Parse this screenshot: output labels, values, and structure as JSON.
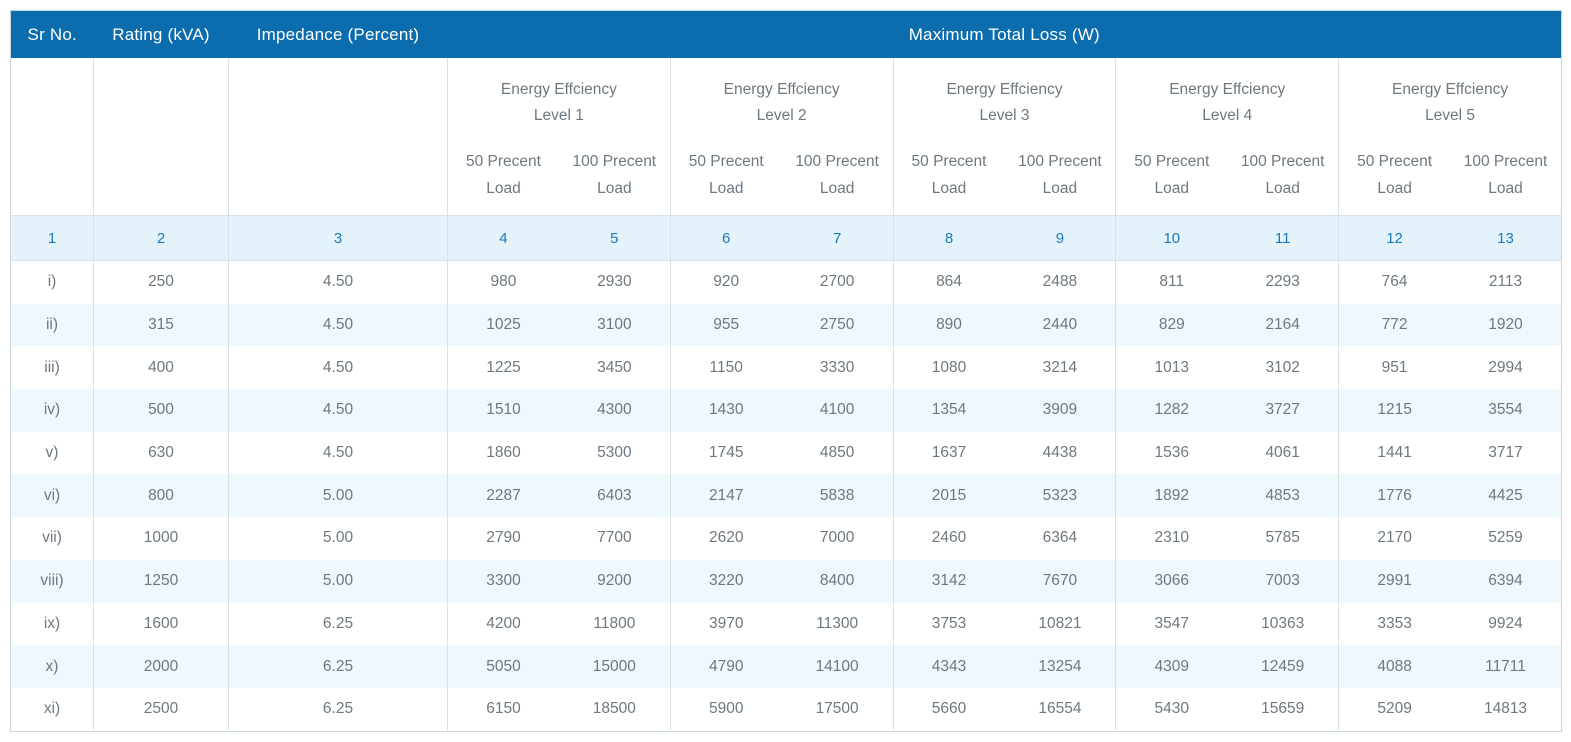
{
  "table": {
    "header": {
      "sr_no": "Sr No.",
      "rating": "Rating (kVA)",
      "impedance": "Impedance (Percent)",
      "max_total_loss": "Maximum Total Loss (W)"
    },
    "levels": [
      {
        "line1": "Energy Effciency",
        "line2": "Level 1"
      },
      {
        "line1": "Energy Effciency",
        "line2": "Level 2"
      },
      {
        "line1": "Energy Effciency",
        "line2": "Level 3"
      },
      {
        "line1": "Energy Effciency",
        "line2": "Level 4"
      },
      {
        "line1": "Energy Effciency",
        "line2": "Level 5"
      }
    ],
    "load50": {
      "line1": "50 Precent",
      "line2": "Load"
    },
    "load100": {
      "line1": "100 Precent",
      "line2": "Load"
    },
    "column_numbers": [
      "1",
      "2",
      "3",
      "4",
      "5",
      "6",
      "7",
      "8",
      "9",
      "10",
      "11",
      "12",
      "13"
    ],
    "rows": [
      {
        "sr": "i)",
        "rating": "250",
        "impedance": "4.50",
        "values": [
          "980",
          "2930",
          "920",
          "2700",
          "864",
          "2488",
          "811",
          "2293",
          "764",
          "2113"
        ]
      },
      {
        "sr": "ii)",
        "rating": "315",
        "impedance": "4.50",
        "values": [
          "1025",
          "3100",
          "955",
          "2750",
          "890",
          "2440",
          "829",
          "2164",
          "772",
          "1920"
        ]
      },
      {
        "sr": "iii)",
        "rating": "400",
        "impedance": "4.50",
        "values": [
          "1225",
          "3450",
          "1150",
          "3330",
          "1080",
          "3214",
          "1013",
          "3102",
          "951",
          "2994"
        ]
      },
      {
        "sr": "iv)",
        "rating": "500",
        "impedance": "4.50",
        "values": [
          "1510",
          "4300",
          "1430",
          "4100",
          "1354",
          "3909",
          "1282",
          "3727",
          "1215",
          "3554"
        ]
      },
      {
        "sr": "v)",
        "rating": "630",
        "impedance": "4.50",
        "values": [
          "1860",
          "5300",
          "1745",
          "4850",
          "1637",
          "4438",
          "1536",
          "4061",
          "1441",
          "3717"
        ]
      },
      {
        "sr": "vi)",
        "rating": "800",
        "impedance": "5.00",
        "values": [
          "2287",
          "6403",
          "2147",
          "5838",
          "2015",
          "5323",
          "1892",
          "4853",
          "1776",
          "4425"
        ]
      },
      {
        "sr": "vii)",
        "rating": "1000",
        "impedance": "5.00",
        "values": [
          "2790",
          "7700",
          "2620",
          "7000",
          "2460",
          "6364",
          "2310",
          "5785",
          "2170",
          "5259"
        ]
      },
      {
        "sr": "viii)",
        "rating": "1250",
        "impedance": "5.00",
        "values": [
          "3300",
          "9200",
          "3220",
          "8400",
          "3142",
          "7670",
          "3066",
          "7003",
          "2991",
          "6394"
        ]
      },
      {
        "sr": "ix)",
        "rating": "1600",
        "impedance": "6.25",
        "values": [
          "4200",
          "11800",
          "3970",
          "11300",
          "3753",
          "10821",
          "3547",
          "10363",
          "3353",
          "9924"
        ]
      },
      {
        "sr": "x)",
        "rating": "2000",
        "impedance": "6.25",
        "values": [
          "5050",
          "15000",
          "4790",
          "14100",
          "4343",
          "13254",
          "4309",
          "12459",
          "4088",
          "11711"
        ]
      },
      {
        "sr": "xi)",
        "rating": "2500",
        "impedance": "6.25",
        "values": [
          "6150",
          "18500",
          "5900",
          "17500",
          "5660",
          "16554",
          "5430",
          "15659",
          "5209",
          "14813"
        ]
      }
    ]
  },
  "colors": {
    "header_blue": "#0b6dad",
    "header_text": "#ffffff",
    "number_row_bg": "#e4f2fa",
    "number_row_text": "#1b7ab8",
    "alt_row_bg": "#eef8fd",
    "body_text": "#6e7881",
    "border": "#d6e3ea",
    "outer_border": "#c9d5dc"
  },
  "chart_data": {
    "type": "table",
    "title": "Maximum Total Loss (W)",
    "columns": [
      "Sr No.",
      "Rating (kVA)",
      "Impedance (Percent)",
      "Energy Effciency Level 1 - 50 Precent Load",
      "Energy Effciency Level 1 - 100 Precent Load",
      "Energy Effciency Level 2 - 50 Precent Load",
      "Energy Effciency Level 2 - 100 Precent Load",
      "Energy Effciency Level 3 - 50 Precent Load",
      "Energy Effciency Level 3 - 100 Precent Load",
      "Energy Effciency Level 4 - 50 Precent Load",
      "Energy Effciency Level 4 - 100 Precent Load",
      "Energy Effciency Level 5 - 50 Precent Load",
      "Energy Effciency Level 5 - 100 Precent Load"
    ],
    "column_numbers": [
      1,
      2,
      3,
      4,
      5,
      6,
      7,
      8,
      9,
      10,
      11,
      12,
      13
    ],
    "rows": [
      [
        "i)",
        250,
        4.5,
        980,
        2930,
        920,
        2700,
        864,
        2488,
        811,
        2293,
        764,
        2113
      ],
      [
        "ii)",
        315,
        4.5,
        1025,
        3100,
        955,
        2750,
        890,
        2440,
        829,
        2164,
        772,
        1920
      ],
      [
        "iii)",
        400,
        4.5,
        1225,
        3450,
        1150,
        3330,
        1080,
        3214,
        1013,
        3102,
        951,
        2994
      ],
      [
        "iv)",
        500,
        4.5,
        1510,
        4300,
        1430,
        4100,
        1354,
        3909,
        1282,
        3727,
        1215,
        3554
      ],
      [
        "v)",
        630,
        4.5,
        1860,
        5300,
        1745,
        4850,
        1637,
        4438,
        1536,
        4061,
        1441,
        3717
      ],
      [
        "vi)",
        800,
        5.0,
        2287,
        6403,
        2147,
        5838,
        2015,
        5323,
        1892,
        4853,
        1776,
        4425
      ],
      [
        "vii)",
        1000,
        5.0,
        2790,
        7700,
        2620,
        7000,
        2460,
        6364,
        2310,
        5785,
        2170,
        5259
      ],
      [
        "viii)",
        1250,
        5.0,
        3300,
        9200,
        3220,
        8400,
        3142,
        7670,
        3066,
        7003,
        2991,
        6394
      ],
      [
        "ix)",
        1600,
        6.25,
        4200,
        11800,
        3970,
        11300,
        3753,
        10821,
        3547,
        10363,
        3353,
        9924
      ],
      [
        "x)",
        2000,
        6.25,
        5050,
        15000,
        4790,
        14100,
        4343,
        13254,
        4309,
        12459,
        4088,
        11711
      ],
      [
        "xi)",
        2500,
        6.25,
        6150,
        18500,
        5900,
        17500,
        5660,
        16554,
        5430,
        15659,
        5209,
        14813
      ]
    ]
  }
}
